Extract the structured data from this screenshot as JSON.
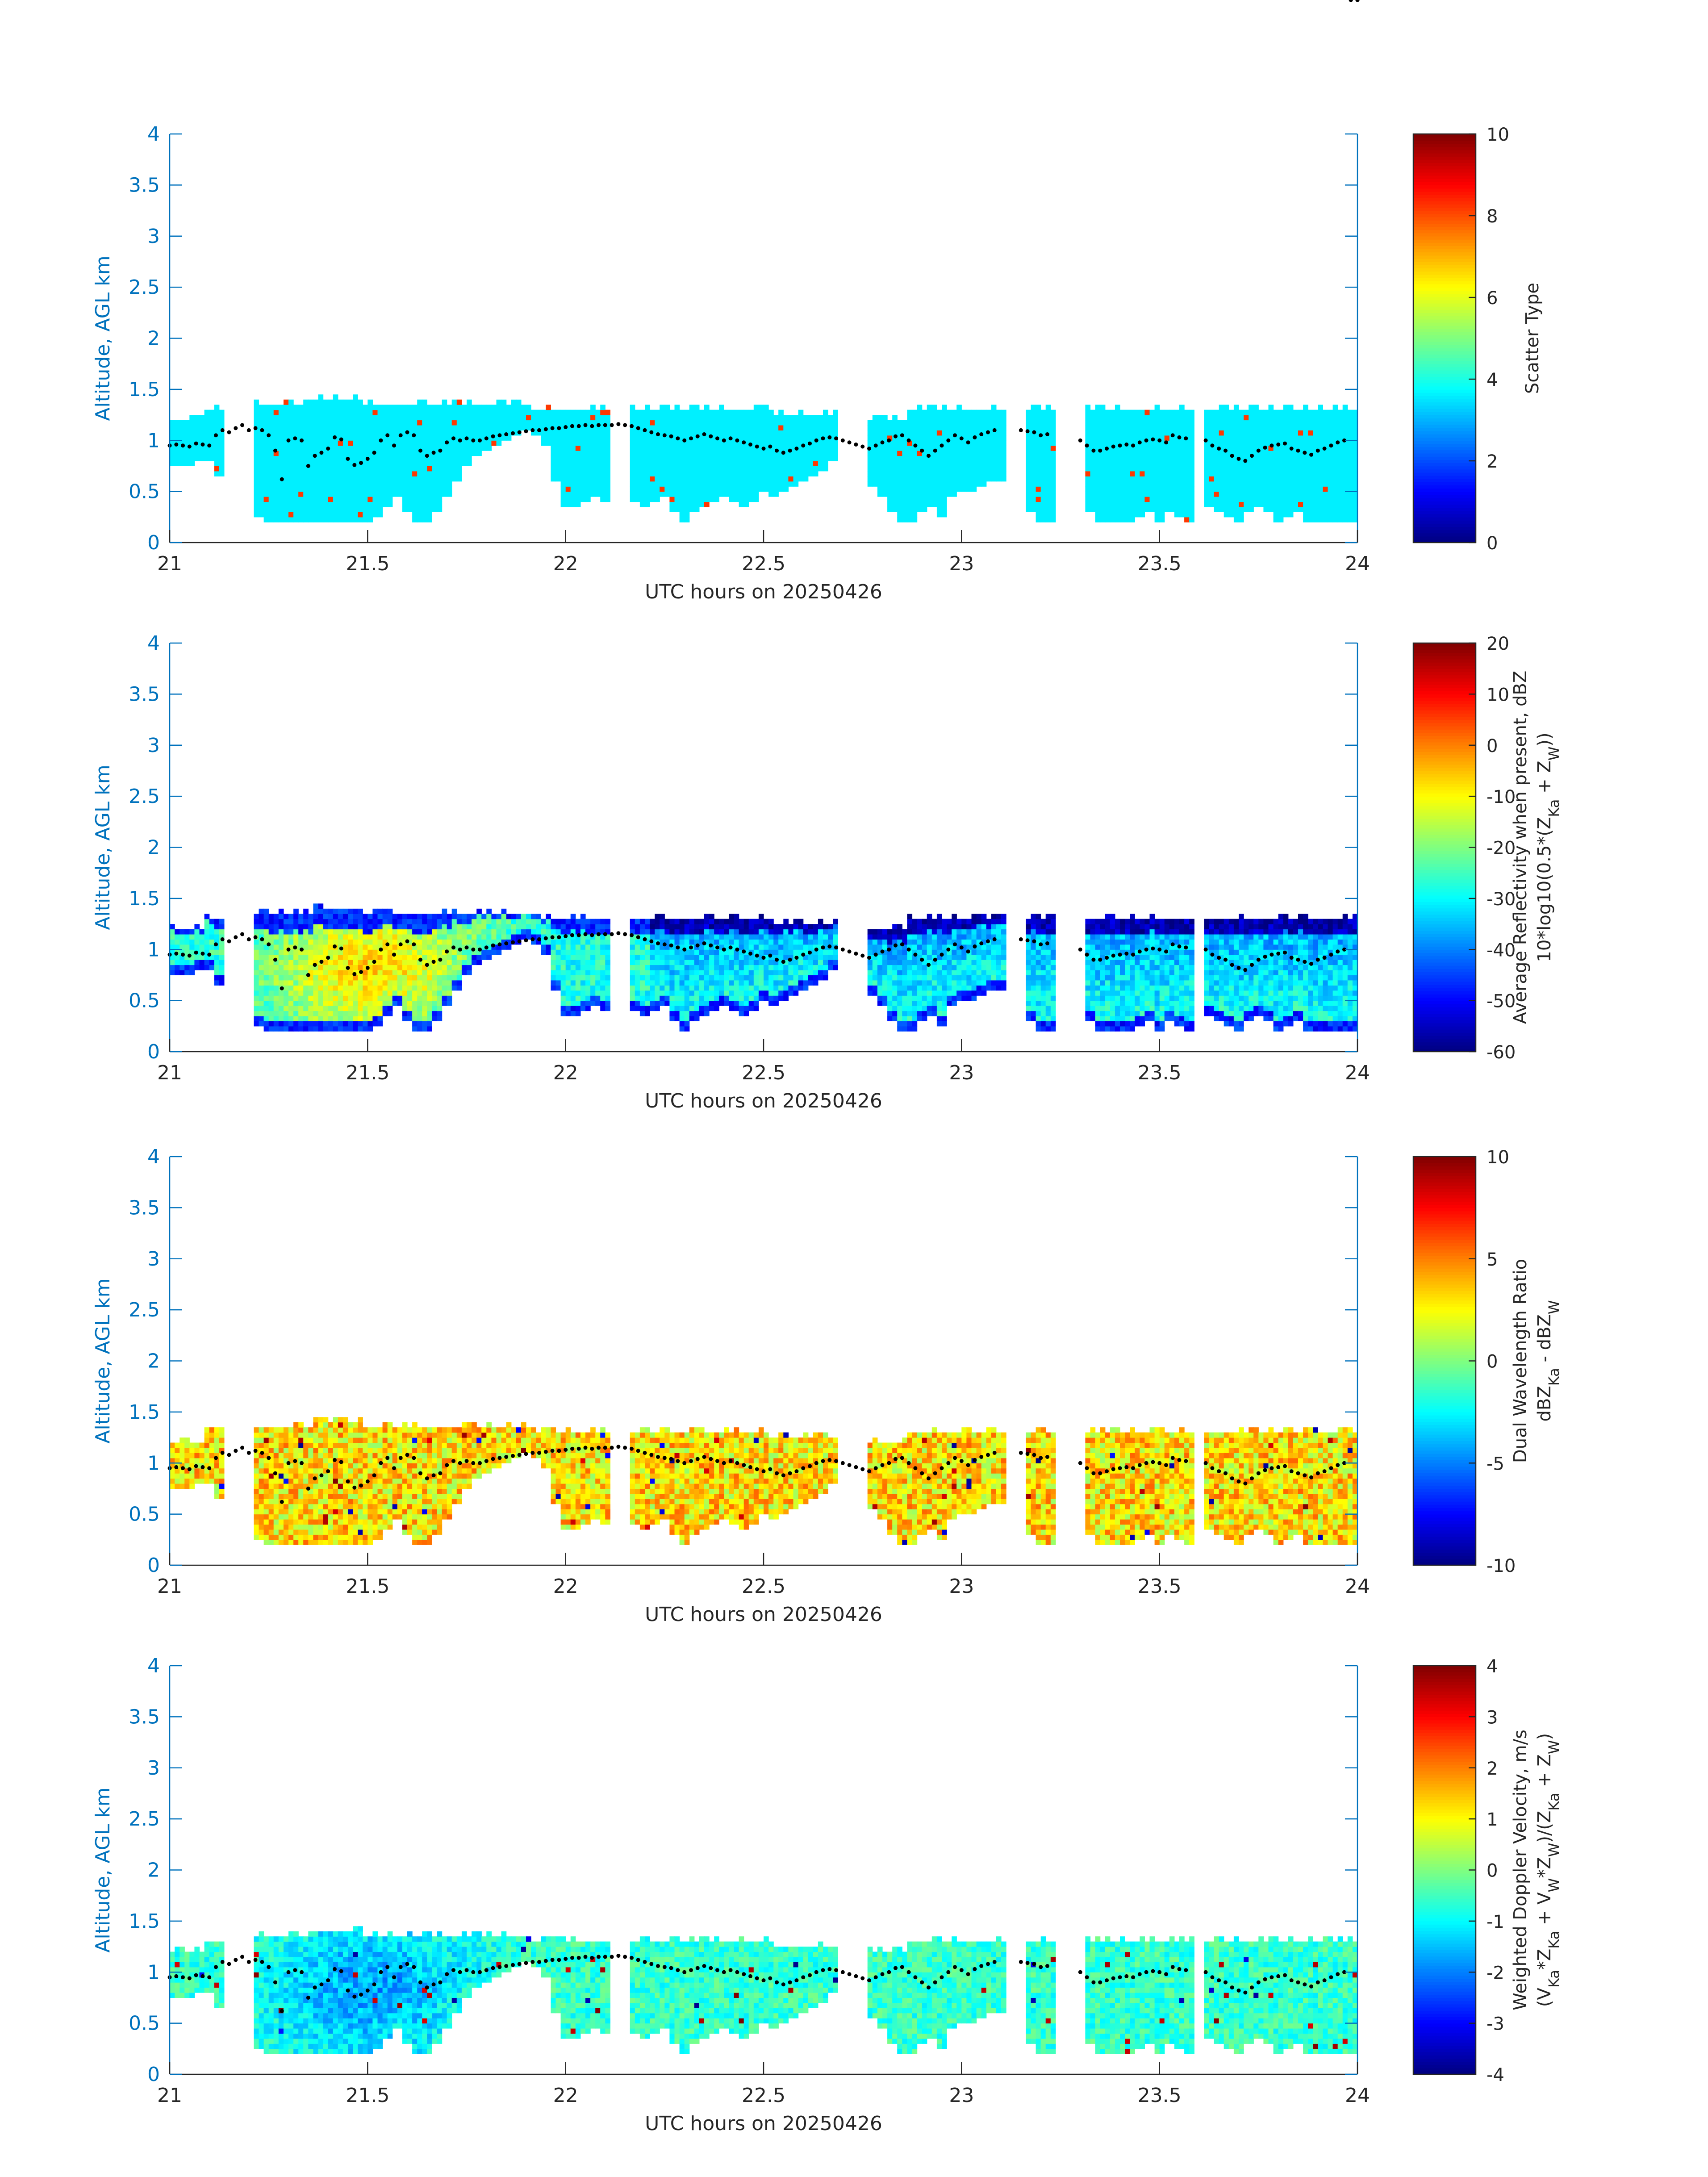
{
  "colors": {
    "axis_blue": "#0072bd",
    "text_dark": "#262626",
    "background": "#ffffff",
    "colormap": "jet"
  },
  "chart_data": [
    {
      "type": "heatmap",
      "title": "",
      "xlabel": "UTC hours on 20250426",
      "ylabel": "Altitude, AGL km",
      "xlim": [
        21,
        24
      ],
      "ylim": [
        0,
        4
      ],
      "xticks": [
        "21",
        "21.5",
        "22",
        "22.5",
        "23",
        "23.5",
        "24"
      ],
      "yticks": [
        "0",
        "0.5",
        "1",
        "1.5",
        "2",
        "2.5",
        "3",
        "3.5",
        "4"
      ],
      "colorbar": {
        "label_lines": [
          "Scatter Type"
        ],
        "clim": [
          0,
          10
        ],
        "ticks": [
          "0",
          "2",
          "4",
          "6",
          "8",
          "10"
        ]
      },
      "field": {
        "base": 3.6,
        "amp": 0,
        "noise": 0,
        "outlier": "red",
        "outlier_value": 8.2,
        "outlier_rate": 0.012,
        "bottom_blue": false
      },
      "grid": false
    },
    {
      "type": "heatmap",
      "title": "",
      "xlabel": "UTC hours on 20250426",
      "ylabel": "Altitude, AGL km",
      "xlim": [
        21,
        24
      ],
      "ylim": [
        0,
        4
      ],
      "xticks": [
        "21",
        "21.5",
        "22",
        "22.5",
        "23",
        "23.5",
        "24"
      ],
      "yticks": [
        "0",
        "0.5",
        "1",
        "1.5",
        "2",
        "2.5",
        "3",
        "3.5",
        "4"
      ],
      "colorbar": {
        "label_lines": [
          "Average Reflectivity when present, dBZ",
          "10*log10(0.5*(Z{Ka} + Z{W}))"
        ],
        "clim": [
          -60,
          20
        ],
        "ticks": [
          "-60",
          "-50",
          "-40",
          "-30",
          "-20",
          "-10",
          "0",
          "10",
          "20"
        ]
      },
      "field": {
        "base": -28,
        "amp": 22,
        "noise": 6,
        "outlier": "none",
        "bottom_blue": true
      },
      "grid": false
    },
    {
      "type": "heatmap",
      "title": "",
      "xlabel": "UTC hours on 20250426",
      "ylabel": "Altitude, AGL km",
      "xlim": [
        21,
        24
      ],
      "ylim": [
        0,
        4
      ],
      "xticks": [
        "21",
        "21.5",
        "22",
        "22.5",
        "23",
        "23.5",
        "24"
      ],
      "yticks": [
        "0",
        "0.5",
        "1",
        "1.5",
        "2",
        "2.5",
        "3",
        "3.5",
        "4"
      ],
      "colorbar": {
        "label_lines": [
          "Dual Wavelength Ratio",
          "dBZ{Ka} - dBZ{W}"
        ],
        "clim": [
          -10,
          10
        ],
        "ticks": [
          "-10",
          "-5",
          "0",
          "5",
          "10"
        ]
      },
      "field": {
        "base": 3,
        "amp": 0,
        "noise": 2.6,
        "outlier": "mixed",
        "outlier_rate": 0.02,
        "bottom_blue": false
      },
      "grid": false
    },
    {
      "type": "heatmap",
      "title": "",
      "xlabel": "UTC hours on 20250426",
      "ylabel": "Altitude, AGL km",
      "xlim": [
        21,
        24
      ],
      "ylim": [
        0,
        4
      ],
      "xticks": [
        "21",
        "21.5",
        "22",
        "22.5",
        "23",
        "23.5",
        "24"
      ],
      "yticks": [
        "0",
        "0.5",
        "1",
        "1.5",
        "2",
        "2.5",
        "3",
        "3.5",
        "4"
      ],
      "colorbar": {
        "label_lines": [
          "Weighted Doppler Velocity, m/s",
          "(V{Ka}*Z{Ka} + V{W}*Z{W})/(Z{Ka} + Z{W})"
        ],
        "clim": [
          -4,
          4
        ],
        "ticks": [
          "-4",
          "-3",
          "-2",
          "-1",
          "0",
          "1",
          "2",
          "3",
          "4"
        ]
      },
      "field": {
        "base": -0.6,
        "amp": -1.2,
        "noise": 0.55,
        "outlier": "mixed",
        "outlier_rate": 0.015,
        "bottom_blue": false
      },
      "grid": false
    }
  ],
  "cloud": {
    "time_step_h": 0.025,
    "top_km": [
      1.2,
      1.2,
      1.2,
      1.3,
      1.3,
      1.3,
      1.3,
      1.35,
      1.35,
      1.35,
      1.35,
      1.35,
      1.35,
      1.35,
      1.4,
      1.4,
      1.4,
      1.4,
      1.4,
      1.35,
      1.35,
      1.35,
      1.35,
      1.35,
      1.35,
      1.35,
      1.35,
      1.35,
      1.35,
      1.35,
      1.35,
      1.35,
      1.35,
      1.35,
      1.35,
      1.35,
      1.3,
      1.3,
      1.3,
      1.3,
      1.3,
      1.3,
      1.3,
      1.3,
      1.3,
      1.3,
      1.3,
      1.3,
      1.3,
      1.3,
      1.3,
      1.3,
      1.3,
      1.3,
      1.3,
      1.3,
      1.3,
      1.3,
      1.3,
      1.3,
      1.25,
      1.25,
      1.25,
      1.25,
      1.25,
      1.25,
      1.25,
      0,
      0,
      0.0,
      1.2,
      1.2,
      1.2,
      1.2,
      1.3,
      1.3,
      1.3,
      1.3,
      1.3,
      1.3,
      1.3,
      1.3,
      1.3,
      1.3,
      1.3,
      1.3,
      1.3,
      1.3,
      1.3,
      1.3,
      1.3,
      1.3,
      1.3,
      1.3,
      1.3,
      1.3,
      1.3,
      1.3,
      1.3,
      1.3,
      1.3,
      1.3,
      1.3,
      1.3,
      1.3,
      1.3,
      1.3,
      1.3,
      1.3,
      1.3,
      1.3,
      1.3,
      1.3,
      1.3,
      1.3
    ],
    "base_km": [
      0.75,
      0.75,
      0.8,
      0.8,
      0.65,
      0.55,
      0.45,
      0.35,
      0.25,
      0.2,
      0.2,
      0.2,
      0.2,
      0.2,
      0.2,
      0.2,
      0.2,
      0.2,
      0.2,
      0.2,
      0.25,
      0.35,
      0.45,
      0.3,
      0.2,
      0.2,
      0.3,
      0.45,
      0.6,
      0.75,
      0.85,
      0.9,
      0.95,
      1.0,
      1.05,
      1.1,
      1.05,
      0.95,
      0.6,
      0.35,
      0.35,
      0.4,
      0.45,
      0.4,
      0.45,
      0.5,
      0.4,
      0.35,
      0.4,
      0.45,
      0.3,
      0.2,
      0.3,
      0.35,
      0.4,
      0.45,
      0.4,
      0.35,
      0.4,
      0.5,
      0.45,
      0.5,
      0.55,
      0.6,
      0.65,
      0.7,
      0.8,
      0,
      0,
      0,
      0.55,
      0.45,
      0.3,
      0.2,
      0.2,
      0.3,
      0.35,
      0.25,
      0.45,
      0.5,
      0.5,
      0.55,
      0.6,
      0.6,
      0.45,
      0.5,
      0.3,
      0.2,
      0.2,
      0.3,
      0.2,
      0.25,
      0.3,
      0.2,
      0.2,
      0.2,
      0.2,
      0.25,
      0.3,
      0.2,
      0.3,
      0.25,
      0.2,
      0.3,
      0.35,
      0.3,
      0.25,
      0.2,
      0.3,
      0.35,
      0.3,
      0.2,
      0.25,
      0.3,
      0.2,
      0.2,
      0.3,
      0.35,
      0.45,
      0.5
    ],
    "gaps_h": [
      [
        21.125,
        21.2
      ],
      [
        22.1,
        22.15
      ],
      [
        23.1,
        23.15
      ],
      [
        23.225,
        23.3
      ],
      [
        23.575,
        23.6
      ]
    ]
  },
  "cloud_base_dots": {
    "t": [
      21.0,
      21.0167,
      21.0333,
      21.05,
      21.0667,
      21.0833,
      21.1,
      21.1167,
      21.1333,
      21.15,
      21.1667,
      21.1833,
      21.2,
      21.2167,
      21.2333,
      21.25,
      21.2667,
      21.2833,
      21.3,
      21.3167,
      21.3333,
      21.35,
      21.3667,
      21.3833,
      21.4,
      21.4167,
      21.4333,
      21.45,
      21.4667,
      21.4833,
      21.5,
      21.5167,
      21.5333,
      21.55,
      21.5667,
      21.5833,
      21.6,
      21.6167,
      21.6333,
      21.65,
      21.6667,
      21.6833,
      21.7,
      21.7167,
      21.7333,
      21.75,
      21.7667,
      21.7833,
      21.8,
      21.8167,
      21.8333,
      21.85,
      21.8667,
      21.8833,
      21.9,
      21.9167,
      21.9333,
      21.95,
      21.9667,
      21.9833,
      22.0,
      22.0167,
      22.0333,
      22.05,
      22.0667,
      22.0833,
      22.1,
      22.1167,
      22.1333,
      22.15,
      22.1667,
      22.1833,
      22.2,
      22.2167,
      22.2333,
      22.25,
      22.2667,
      22.2833,
      22.3,
      22.3167,
      22.3333,
      22.35,
      22.3667,
      22.3833,
      22.4,
      22.4167,
      22.4333,
      22.45,
      22.4667,
      22.4833,
      22.5,
      22.5167,
      22.5333,
      22.55,
      22.5667,
      22.5833,
      22.6,
      22.6167,
      22.6333,
      22.65,
      22.6667,
      22.6833,
      22.7,
      22.7167,
      22.7333,
      22.75,
      22.7667,
      22.7833,
      22.8,
      22.8167,
      22.8333,
      22.85,
      22.8667,
      22.8833,
      22.9,
      22.9167,
      22.9333,
      22.95,
      22.9667,
      22.9833,
      23.0,
      23.0167,
      23.0333,
      23.05,
      23.0667,
      23.0833,
      23.15,
      23.1667,
      23.1833,
      23.2,
      23.2167,
      23.3,
      23.3167,
      23.3333,
      23.35,
      23.3667,
      23.3833,
      23.4,
      23.4167,
      23.4333,
      23.45,
      23.4667,
      23.4833,
      23.5,
      23.5167,
      23.5333,
      23.55,
      23.5667,
      23.6167,
      23.6333,
      23.65,
      23.6667,
      23.6833,
      23.7,
      23.7167,
      23.7333,
      23.75,
      23.7667,
      23.7833,
      23.8,
      23.8167,
      23.8333,
      23.85,
      23.8667,
      23.8833,
      23.9,
      23.9167,
      23.9333,
      23.95,
      23.9667,
      23.9833,
      24.0
    ],
    "km": [
      0.95,
      0.96,
      0.95,
      0.94,
      0.97,
      0.96,
      0.95,
      1.05,
      1.1,
      1.08,
      1.12,
      1.15,
      1.1,
      1.12,
      1.1,
      1.05,
      0.9,
      0.62,
      1.0,
      1.02,
      1.0,
      0.75,
      0.85,
      0.88,
      0.92,
      1.03,
      1.01,
      0.82,
      0.76,
      0.78,
      0.82,
      0.88,
      1.0,
      1.05,
      0.95,
      1.05,
      1.08,
      1.05,
      0.9,
      0.85,
      0.88,
      0.9,
      0.98,
      1.02,
      1.0,
      1.02,
      1.0,
      1.0,
      1.02,
      1.04,
      1.05,
      1.06,
      1.07,
      1.08,
      1.09,
      1.1,
      1.1,
      1.11,
      1.12,
      1.12,
      1.13,
      1.14,
      1.14,
      1.15,
      1.14,
      1.15,
      1.15,
      1.15,
      1.16,
      1.15,
      1.14,
      1.12,
      1.1,
      1.08,
      1.06,
      1.05,
      1.04,
      1.02,
      1.0,
      1.02,
      1.04,
      1.06,
      1.04,
      1.02,
      1.0,
      1.02,
      1.0,
      0.98,
      0.96,
      0.94,
      0.92,
      0.94,
      0.9,
      0.88,
      0.9,
      0.92,
      0.95,
      0.97,
      1.0,
      1.02,
      1.03,
      1.02,
      1.0,
      0.98,
      0.96,
      0.94,
      0.92,
      0.95,
      0.98,
      1.0,
      1.04,
      1.05,
      1.0,
      0.95,
      0.9,
      0.85,
      0.9,
      0.95,
      1.0,
      1.05,
      1.02,
      0.98,
      1.03,
      1.06,
      1.08,
      1.1,
      1.1,
      1.09,
      1.08,
      1.05,
      1.06,
      1.0,
      0.95,
      0.9,
      0.9,
      0.92,
      0.94,
      0.95,
      0.96,
      0.95,
      0.98,
      1.0,
      1.01,
      1.0,
      0.98,
      1.05,
      1.03,
      1.02,
      1.0,
      0.95,
      0.92,
      0.9,
      0.85,
      0.82,
      0.8,
      0.85,
      0.9,
      0.93,
      0.95,
      0.96,
      0.97,
      0.92,
      0.9,
      0.88,
      0.86,
      0.9,
      0.92,
      0.95,
      0.98,
      1.0
    ]
  }
}
